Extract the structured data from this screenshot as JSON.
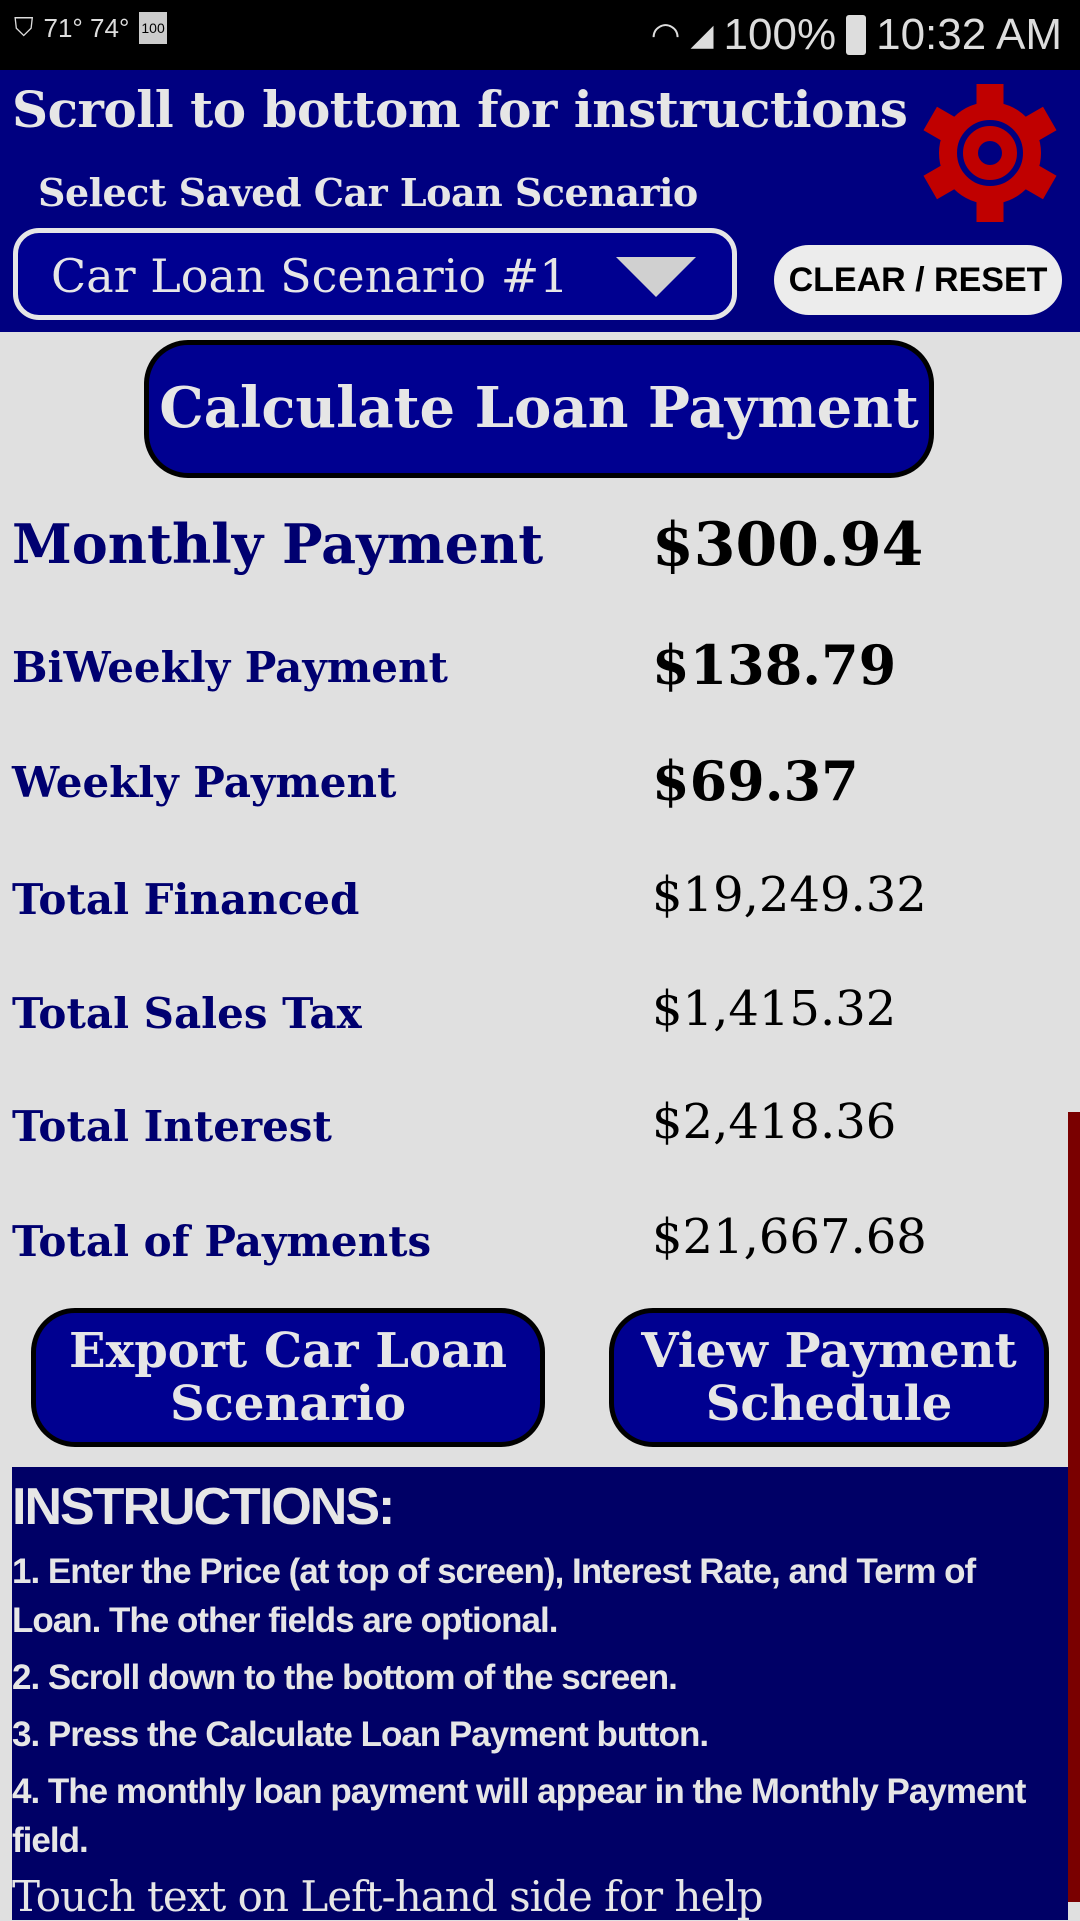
{
  "status_bar": {
    "temps": "71° 74°",
    "battery_small": "100",
    "battery": "100%",
    "time": "10:32 AM"
  },
  "header": {
    "title": "Scroll to bottom for instructions",
    "select_label": "Select Saved Car Loan Scenario",
    "selected_scenario": "Car Loan Scenario #1",
    "clear_reset": "CLEAR / RESET",
    "gear_color": "#c00000"
  },
  "calculate_label": "Calculate Loan Payment",
  "results": [
    {
      "label": "Monthly Payment",
      "value": "$300.94"
    },
    {
      "label": "BiWeekly Payment",
      "value": "$138.79"
    },
    {
      "label": "Weekly Payment",
      "value": "$69.37"
    },
    {
      "label": "Total Financed",
      "value": "$19,249.32"
    },
    {
      "label": "Total Sales Tax",
      "value": "$1,415.32"
    },
    {
      "label": "Total Interest",
      "value": "$2,418.36"
    },
    {
      "label": "Total of Payments",
      "value": "$21,667.68"
    }
  ],
  "export_label": "Export Car Loan Scenario",
  "schedule_label": "View Payment Schedule",
  "instructions": {
    "heading": "INSTRUCTIONS:",
    "steps": [
      "1. Enter the Price (at top of screen), Interest Rate, and Term of Loan. The other fields are optional.",
      "2. Scroll down to the bottom of the screen.",
      "3. Press the Calculate Loan Payment button.",
      "4. The monthly loan payment will appear in the Monthly Payment field."
    ],
    "help": "Touch text on Left-hand side for help"
  }
}
